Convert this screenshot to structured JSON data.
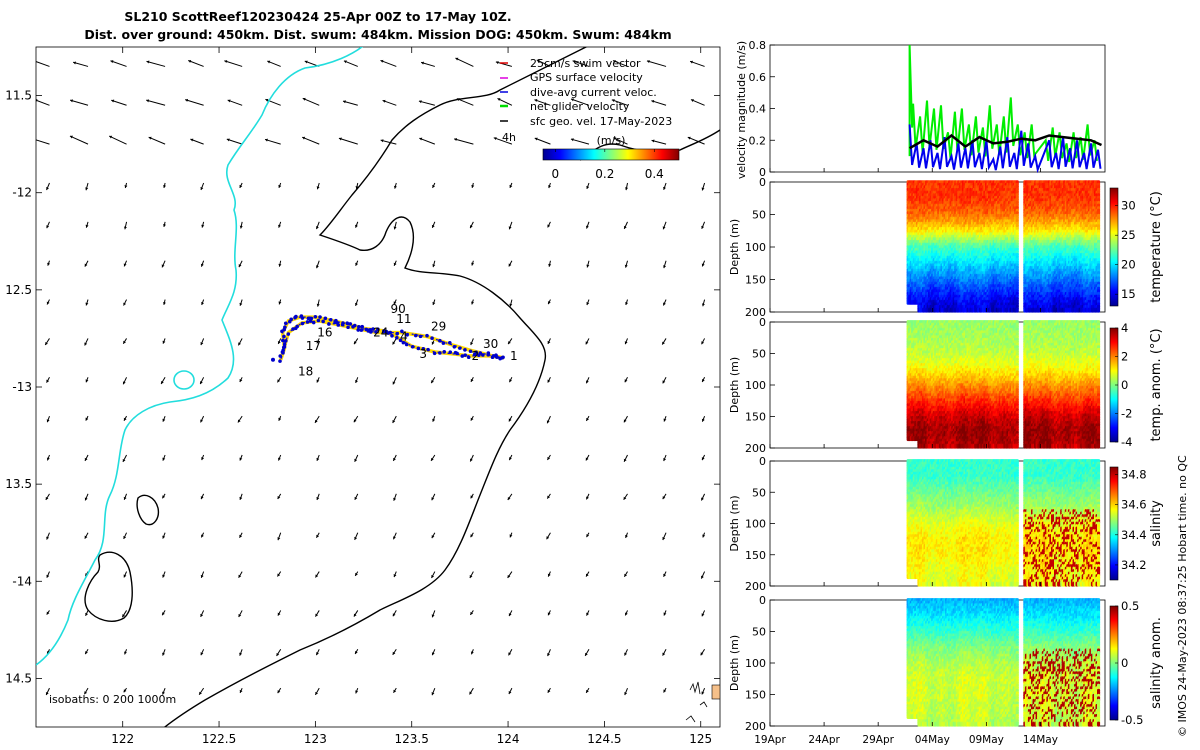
{
  "header": {
    "title_line1": "SL210 ScottReef120230424 25-Apr 00Z to 17-May 10Z.",
    "title_line2": "Dist. over ground: 450km. Dist. swum: 484km. Mission DOG: 450km. Swum: 484km"
  },
  "chart_data": [
    {
      "id": "map",
      "type": "scatter",
      "title": "SL210 ScottReef120230424 25-Apr 00Z to 17-May 10Z.",
      "xlabel": "",
      "ylabel": "",
      "xlim": [
        121.55,
        125.1
      ],
      "ylim": [
        -14.75,
        -11.25
      ],
      "xticks": [
        122,
        122.5,
        123,
        123.5,
        124,
        124.5,
        125
      ],
      "xtick_labels": [
        "122",
        "122.5",
        "123",
        "123.5",
        "124",
        "124.5",
        "125"
      ],
      "yticks": [
        -11.5,
        -12,
        -12.5,
        -13,
        -13.5,
        -14,
        -14.5
      ],
      "ytick_labels": [
        "11.5",
        "-12",
        "12.5",
        "-13",
        "13.5",
        "-14",
        "14.5"
      ],
      "legend": {
        "placement": "top-right",
        "entries": [
          {
            "label": "25cm/s swim vector",
            "color": "#dd0000"
          },
          {
            "label": "GPS surface velocity",
            "color": "#dd00dd"
          },
          {
            "label": "dive-avg current veloc.",
            "color": "#0000dd"
          },
          {
            "label": "net glider velocity",
            "color": "#00dd00"
          },
          {
            "label": "sfc geo. vel. 17-May-2023",
            "color": "#000000"
          }
        ],
        "scale_arrow_label": "4h",
        "colorbar_title": "(m/s)",
        "colorbar_ticks": [
          "0",
          "0.2",
          "0.4"
        ],
        "colorbar_range": [
          -0.05,
          0.5
        ]
      },
      "isobath_label": "isobaths: 0  200  1000m",
      "track": [
        [
          123.98,
          -12.85
        ],
        [
          123.9,
          -12.84
        ],
        [
          123.8,
          -12.84
        ],
        [
          123.72,
          -12.83
        ],
        [
          123.62,
          -12.82
        ],
        [
          123.5,
          -12.79
        ],
        [
          123.42,
          -12.74
        ],
        [
          123.35,
          -12.71
        ],
        [
          123.26,
          -12.7
        ],
        [
          123.18,
          -12.68
        ],
        [
          123.1,
          -12.66
        ],
        [
          123.0,
          -12.64
        ],
        [
          122.92,
          -12.64
        ],
        [
          122.86,
          -12.66
        ],
        [
          122.83,
          -12.72
        ],
        [
          122.84,
          -12.8
        ],
        [
          122.82,
          -12.86
        ],
        [
          122.86,
          -12.72
        ],
        [
          122.93,
          -12.67
        ],
        [
          123.02,
          -12.66
        ],
        [
          123.12,
          -12.68
        ],
        [
          123.22,
          -12.7
        ],
        [
          123.32,
          -12.72
        ],
        [
          123.45,
          -12.72
        ],
        [
          123.58,
          -12.74
        ],
        [
          123.7,
          -12.78
        ],
        [
          123.8,
          -12.81
        ],
        [
          123.92,
          -12.84
        ],
        [
          123.98,
          -12.85
        ]
      ],
      "day_labels": [
        {
          "text": "1",
          "lon": 124.01,
          "lat": -12.86
        },
        {
          "text": "2",
          "lon": 123.81,
          "lat": -12.86
        },
        {
          "text": "3",
          "lon": 123.54,
          "lat": -12.85
        },
        {
          "text": "4",
          "lon": 123.44,
          "lat": -12.76
        },
        {
          "text": "11",
          "lon": 123.42,
          "lat": -12.67
        },
        {
          "text": "16",
          "lon": 123.01,
          "lat": -12.74
        },
        {
          "text": "17",
          "lon": 122.95,
          "lat": -12.81
        },
        {
          "text": "18",
          "lon": 122.91,
          "lat": -12.94
        },
        {
          "text": "24",
          "lon": 123.3,
          "lat": -12.74
        },
        {
          "text": "29",
          "lon": 123.6,
          "lat": -12.71
        },
        {
          "text": "30",
          "lon": 123.87,
          "lat": -12.8
        },
        {
          "text": "90",
          "lon": 123.39,
          "lat": -12.62
        }
      ]
    },
    {
      "id": "velocity",
      "type": "line",
      "title": "",
      "xlabel": "",
      "ylabel": "velocity magnitude (m/s)",
      "ylim": [
        0,
        0.8
      ],
      "yticks": [
        0,
        0.2,
        0.4,
        0.6,
        0.8
      ],
      "xlim_days": [
        0,
        48
      ],
      "series": [
        {
          "name": "net glider velocity",
          "color": "#00ee00",
          "x": [
            20.0,
            20.5,
            21.5,
            22.5,
            23.5,
            24.5,
            25.5,
            26.5,
            27.5,
            28.5,
            29.5,
            30.5,
            31.5,
            32.5,
            33.5,
            34.5,
            35.5,
            36.5,
            37.5,
            39.5,
            40.5,
            41.5,
            42.5,
            43.5,
            44.5,
            45.5,
            46.5
          ],
          "values": [
            0.8,
            0.43,
            0.35,
            0.45,
            0.4,
            0.42,
            0.25,
            0.38,
            0.4,
            0.3,
            0.35,
            0.28,
            0.42,
            0.3,
            0.35,
            0.47,
            0.3,
            0.25,
            0.3,
            0.2,
            0.28,
            0.25,
            0.18,
            0.25,
            0.22,
            0.3,
            0.2
          ]
        },
        {
          "name": "dive-avg current veloc.",
          "color": "#0000ee",
          "x": [
            20.0,
            21.0,
            22.0,
            23.0,
            24.0,
            25.0,
            26.0,
            27.0,
            28.0,
            29.0,
            30.0,
            31.0,
            32.0,
            33.0,
            34.0,
            35.0,
            36.0,
            37.0,
            38.0,
            40.0,
            41.0,
            42.0,
            43.0,
            44.0,
            45.0,
            46.0,
            47.0
          ],
          "values": [
            0.3,
            0.18,
            0.15,
            0.2,
            0.12,
            0.22,
            0.1,
            0.18,
            0.15,
            0.2,
            0.12,
            0.2,
            0.08,
            0.16,
            0.22,
            0.12,
            0.26,
            0.18,
            0.1,
            0.2,
            0.12,
            0.22,
            0.15,
            0.2,
            0.12,
            0.18,
            0.14
          ]
        },
        {
          "name": "sfc geo. vel.",
          "color": "#000000",
          "x": [
            20.0,
            22.0,
            24.0,
            26.0,
            28.0,
            30.0,
            32.0,
            34.0,
            36.0,
            38.0,
            40.0,
            42.0,
            44.0,
            46.0,
            47.5
          ],
          "values": [
            0.15,
            0.2,
            0.16,
            0.23,
            0.16,
            0.22,
            0.18,
            0.19,
            0.21,
            0.2,
            0.23,
            0.22,
            0.21,
            0.2,
            0.17
          ]
        }
      ]
    },
    {
      "id": "temperature",
      "type": "heatmap",
      "ylabel": "Depth (m)",
      "ylim": [
        200,
        0
      ],
      "yticks": [
        0,
        50,
        100,
        150,
        200
      ],
      "colorbar_label": "temperature (°C)",
      "colorbar_ticks": [
        "30",
        "25",
        "20",
        "15"
      ],
      "colorbar_range": [
        13,
        33
      ],
      "profile_depths": [
        0,
        25,
        50,
        75,
        100,
        125,
        150,
        175,
        200
      ],
      "profile_values": [
        29.5,
        29.5,
        28.5,
        26,
        22,
        20,
        18,
        16,
        14.5
      ]
    },
    {
      "id": "temp_anomaly",
      "type": "heatmap",
      "ylabel": "Depth (m)",
      "ylim": [
        200,
        0
      ],
      "yticks": [
        0,
        50,
        100,
        150,
        200
      ],
      "colorbar_label": "temp. anom. (°C)",
      "colorbar_ticks": [
        "4",
        "2",
        "0",
        "-2",
        "-4"
      ],
      "colorbar_range": [
        -4,
        4
      ],
      "profile_depths": [
        0,
        25,
        50,
        75,
        100,
        125,
        150,
        175,
        200
      ],
      "profile_values": [
        0.2,
        0.3,
        0.5,
        1.0,
        1.8,
        2.6,
        3.4,
        3.8,
        3.6
      ]
    },
    {
      "id": "salinity",
      "type": "heatmap",
      "ylabel": "Depth (m)",
      "ylim": [
        200,
        0
      ],
      "yticks": [
        0,
        50,
        100,
        150,
        200
      ],
      "colorbar_label": "salinity",
      "colorbar_ticks": [
        "34.8",
        "34.6",
        "34.4",
        "34.2"
      ],
      "colorbar_range": [
        34.1,
        34.85
      ],
      "profile_depths": [
        0,
        25,
        50,
        75,
        100,
        125,
        150,
        175,
        200
      ],
      "profile_values": [
        34.42,
        34.42,
        34.46,
        34.5,
        34.55,
        34.58,
        34.58,
        34.56,
        34.55
      ]
    },
    {
      "id": "salinity_anomaly",
      "type": "heatmap",
      "ylabel": "Depth (m)",
      "ylim": [
        200,
        0
      ],
      "yticks": [
        0,
        50,
        100,
        150,
        200
      ],
      "colorbar_label": "salinity anom.",
      "colorbar_ticks": [
        "0.5",
        "0",
        "-0.5"
      ],
      "colorbar_range": [
        -0.5,
        0.5
      ],
      "profile_depths": [
        0,
        25,
        50,
        75,
        100,
        125,
        150,
        175,
        200
      ],
      "profile_values": [
        -0.2,
        -0.15,
        -0.08,
        0.0,
        0.05,
        0.08,
        0.08,
        0.07,
        0.06
      ],
      "xtick_labels": [
        "19Apr",
        "24Apr",
        "29Apr",
        "04May",
        "09May",
        "14May"
      ],
      "xtick_days": [
        0,
        5,
        10,
        15,
        20,
        25
      ]
    }
  ],
  "footer": {
    "timestamp": "© IMOS 24-May-2023 08:37:25 Hobart time. no QC"
  }
}
